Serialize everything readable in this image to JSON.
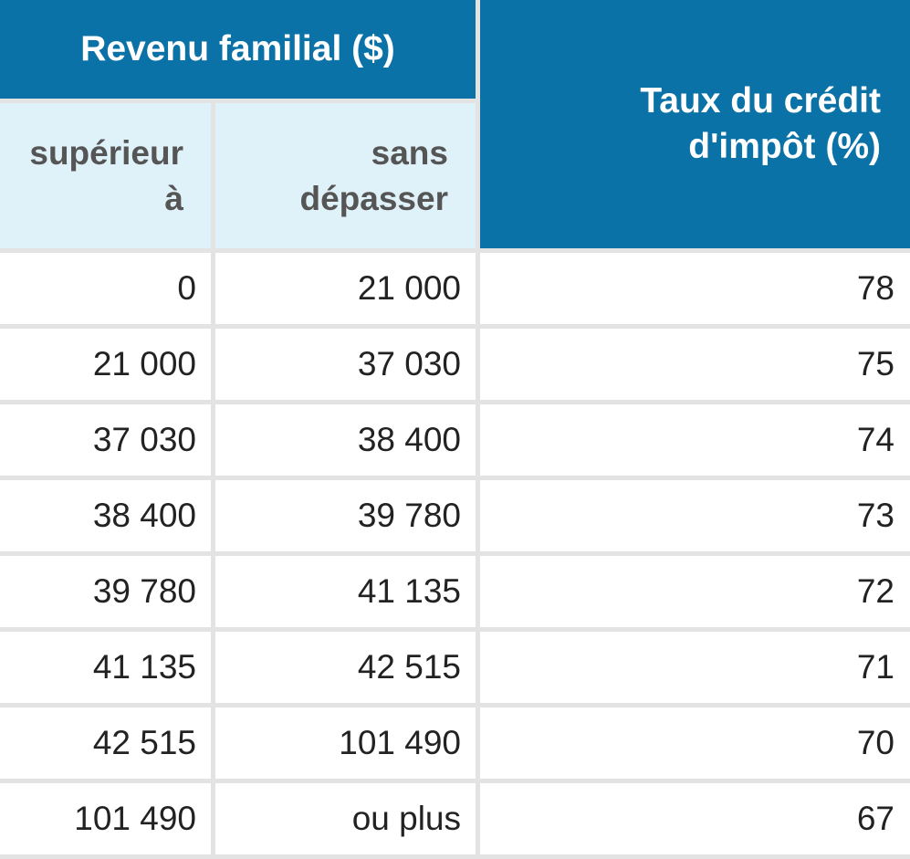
{
  "table": {
    "header_group": "Revenu familial ($)",
    "sub_headers": {
      "col1_line1": "supérieur",
      "col1_line2": "à",
      "col2_line1": "sans",
      "col2_line2": "dépasser"
    },
    "rate_header_line1": "Taux du crédit",
    "rate_header_line2": "d'impôt (%)",
    "rows": [
      {
        "lower": "0",
        "upper": "21 000",
        "rate": "78"
      },
      {
        "lower": "21 000",
        "upper": "37 030",
        "rate": "75"
      },
      {
        "lower": "37 030",
        "upper": "38 400",
        "rate": "74"
      },
      {
        "lower": "38 400",
        "upper": "39 780",
        "rate": "73"
      },
      {
        "lower": "39 780",
        "upper": "41 135",
        "rate": "72"
      },
      {
        "lower": "41 135",
        "upper": "42 515",
        "rate": "71"
      },
      {
        "lower": "42 515",
        "upper": "101 490",
        "rate": "70"
      },
      {
        "lower": "101 490",
        "upper": "ou plus",
        "rate": "67"
      }
    ]
  },
  "colors": {
    "header_blue": "#0b72a8",
    "subheader_light": "#dff1f9",
    "grid": "#e3e3e3"
  }
}
